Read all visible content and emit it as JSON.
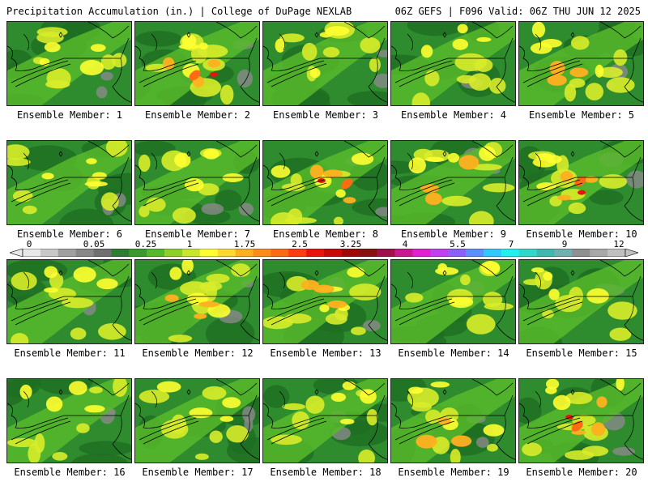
{
  "header": {
    "title": "Precipitation Accumulation (in.) | College of DuPage NEXLAB",
    "valid": "06Z GEFS | F096 Valid: 06Z THU JUN 12 2025"
  },
  "colorbar": {
    "labels": [
      "0",
      "0.05",
      "0.25",
      "1",
      "1.75",
      "2.5",
      "3.25",
      "4",
      "5.5",
      "7",
      "9",
      "12"
    ],
    "colors": [
      "#e8e8e8",
      "#c8c8c8",
      "#a0a0a0",
      "#888888",
      "#707070",
      "#2e7d32",
      "#3a9a2e",
      "#57b82a",
      "#8fcf2a",
      "#c8e62a",
      "#ffff30",
      "#ffd830",
      "#ffb020",
      "#ff8c1a",
      "#ff6a14",
      "#ff3c10",
      "#e8140c",
      "#c80808",
      "#a00808",
      "#881010",
      "#a0104a",
      "#c81890",
      "#e020d0",
      "#c040f0",
      "#8a60f8",
      "#5a90ff",
      "#30c8ff",
      "#20f0f0",
      "#30d8c8",
      "#40b8b0",
      "#70b0b0",
      "#909090",
      "#a8a8a8",
      "#c0c0c0"
    ]
  },
  "panels": [
    {
      "label": "Ensemble Member: 1",
      "intensity": 1
    },
    {
      "label": "Ensemble Member: 2",
      "intensity": 3
    },
    {
      "label": "Ensemble Member: 3",
      "intensity": 1
    },
    {
      "label": "Ensemble Member: 4",
      "intensity": 1
    },
    {
      "label": "Ensemble Member: 5",
      "intensity": 2
    },
    {
      "label": "Ensemble Member: 6",
      "intensity": 1
    },
    {
      "label": "Ensemble Member: 7",
      "intensity": 1
    },
    {
      "label": "Ensemble Member: 8",
      "intensity": 3
    },
    {
      "label": "Ensemble Member: 9",
      "intensity": 2
    },
    {
      "label": "Ensemble Member: 10",
      "intensity": 3
    },
    {
      "label": "Ensemble Member: 11",
      "intensity": 1
    },
    {
      "label": "Ensemble Member: 12",
      "intensity": 2
    },
    {
      "label": "Ensemble Member: 13",
      "intensity": 2
    },
    {
      "label": "Ensemble Member: 14",
      "intensity": 1
    },
    {
      "label": "Ensemble Member: 15",
      "intensity": 0
    },
    {
      "label": "Ensemble Member: 16",
      "intensity": 1
    },
    {
      "label": "Ensemble Member: 17",
      "intensity": 0
    },
    {
      "label": "Ensemble Member: 18",
      "intensity": 1
    },
    {
      "label": "Ensemble Member: 19",
      "intensity": 2
    },
    {
      "label": "Ensemble Member: 20",
      "intensity": 3
    }
  ]
}
